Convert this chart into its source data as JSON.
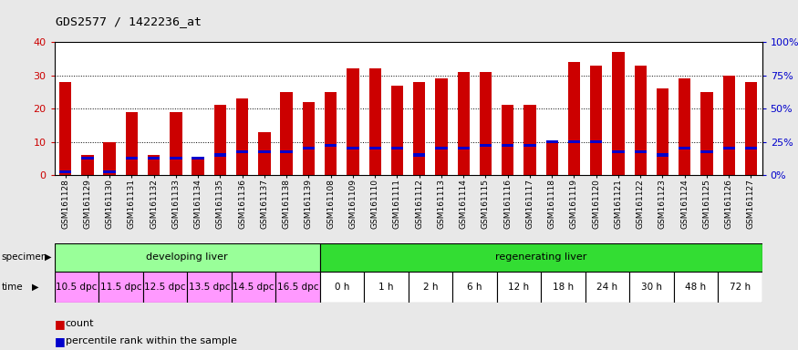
{
  "title": "GDS2577 / 1422236_at",
  "samples": [
    "GSM161128",
    "GSM161129",
    "GSM161130",
    "GSM161131",
    "GSM161132",
    "GSM161133",
    "GSM161134",
    "GSM161135",
    "GSM161136",
    "GSM161137",
    "GSM161138",
    "GSM161139",
    "GSM161108",
    "GSM161109",
    "GSM161110",
    "GSM161111",
    "GSM161112",
    "GSM161113",
    "GSM161114",
    "GSM161115",
    "GSM161116",
    "GSM161117",
    "GSM161118",
    "GSM161119",
    "GSM161120",
    "GSM161121",
    "GSM161122",
    "GSM161123",
    "GSM161124",
    "GSM161125",
    "GSM161126",
    "GSM161127"
  ],
  "count_values": [
    28,
    6,
    10,
    19,
    6,
    19,
    5,
    21,
    23,
    13,
    25,
    22,
    25,
    32,
    32,
    27,
    28,
    29,
    31,
    31,
    21,
    21,
    10,
    34,
    33,
    37,
    33,
    26,
    29,
    25,
    30,
    28
  ],
  "percentile_values": [
    1,
    5,
    1,
    5,
    5,
    5,
    5,
    6,
    7,
    7,
    7,
    8,
    9,
    8,
    8,
    8,
    6,
    8,
    8,
    9,
    9,
    9,
    10,
    10,
    10,
    7,
    7,
    6,
    8,
    7,
    8,
    8
  ],
  "bar_color": "#cc0000",
  "percentile_color": "#0000cc",
  "ylim_left": [
    0,
    40
  ],
  "yticks_left": [
    0,
    10,
    20,
    30,
    40
  ],
  "ylim_right": [
    0,
    100
  ],
  "yticks_right": [
    0,
    25,
    50,
    75,
    100
  ],
  "ylabel_left_color": "#cc0000",
  "ylabel_right_color": "#0000cc",
  "specimen_groups": [
    {
      "label": "developing liver",
      "start": 0,
      "end": 12,
      "color": "#99ff99"
    },
    {
      "label": "regenerating liver",
      "start": 12,
      "end": 32,
      "color": "#33dd33"
    }
  ],
  "time_groups": [
    {
      "label": "10.5 dpc",
      "start": 0,
      "end": 2,
      "color": "#ff99ff"
    },
    {
      "label": "11.5 dpc",
      "start": 2,
      "end": 4,
      "color": "#ff99ff"
    },
    {
      "label": "12.5 dpc",
      "start": 4,
      "end": 6,
      "color": "#ff99ff"
    },
    {
      "label": "13.5 dpc",
      "start": 6,
      "end": 8,
      "color": "#ff99ff"
    },
    {
      "label": "14.5 dpc",
      "start": 8,
      "end": 10,
      "color": "#ff99ff"
    },
    {
      "label": "16.5 dpc",
      "start": 10,
      "end": 12,
      "color": "#ff99ff"
    },
    {
      "label": "0 h",
      "start": 12,
      "end": 14,
      "color": "#ffffff"
    },
    {
      "label": "1 h",
      "start": 14,
      "end": 16,
      "color": "#ffffff"
    },
    {
      "label": "2 h",
      "start": 16,
      "end": 18,
      "color": "#ffffff"
    },
    {
      "label": "6 h",
      "start": 18,
      "end": 20,
      "color": "#ffffff"
    },
    {
      "label": "12 h",
      "start": 20,
      "end": 22,
      "color": "#ffffff"
    },
    {
      "label": "18 h",
      "start": 22,
      "end": 24,
      "color": "#ffffff"
    },
    {
      "label": "24 h",
      "start": 24,
      "end": 26,
      "color": "#ffffff"
    },
    {
      "label": "30 h",
      "start": 26,
      "end": 28,
      "color": "#ffffff"
    },
    {
      "label": "48 h",
      "start": 28,
      "end": 30,
      "color": "#ffffff"
    },
    {
      "label": "72 h",
      "start": 30,
      "end": 32,
      "color": "#ffffff"
    }
  ],
  "background_color": "#e8e8e8",
  "plot_bg_color": "#ffffff",
  "legend_count_color": "#cc0000",
  "legend_percentile_color": "#0000cc",
  "bar_width": 0.55
}
